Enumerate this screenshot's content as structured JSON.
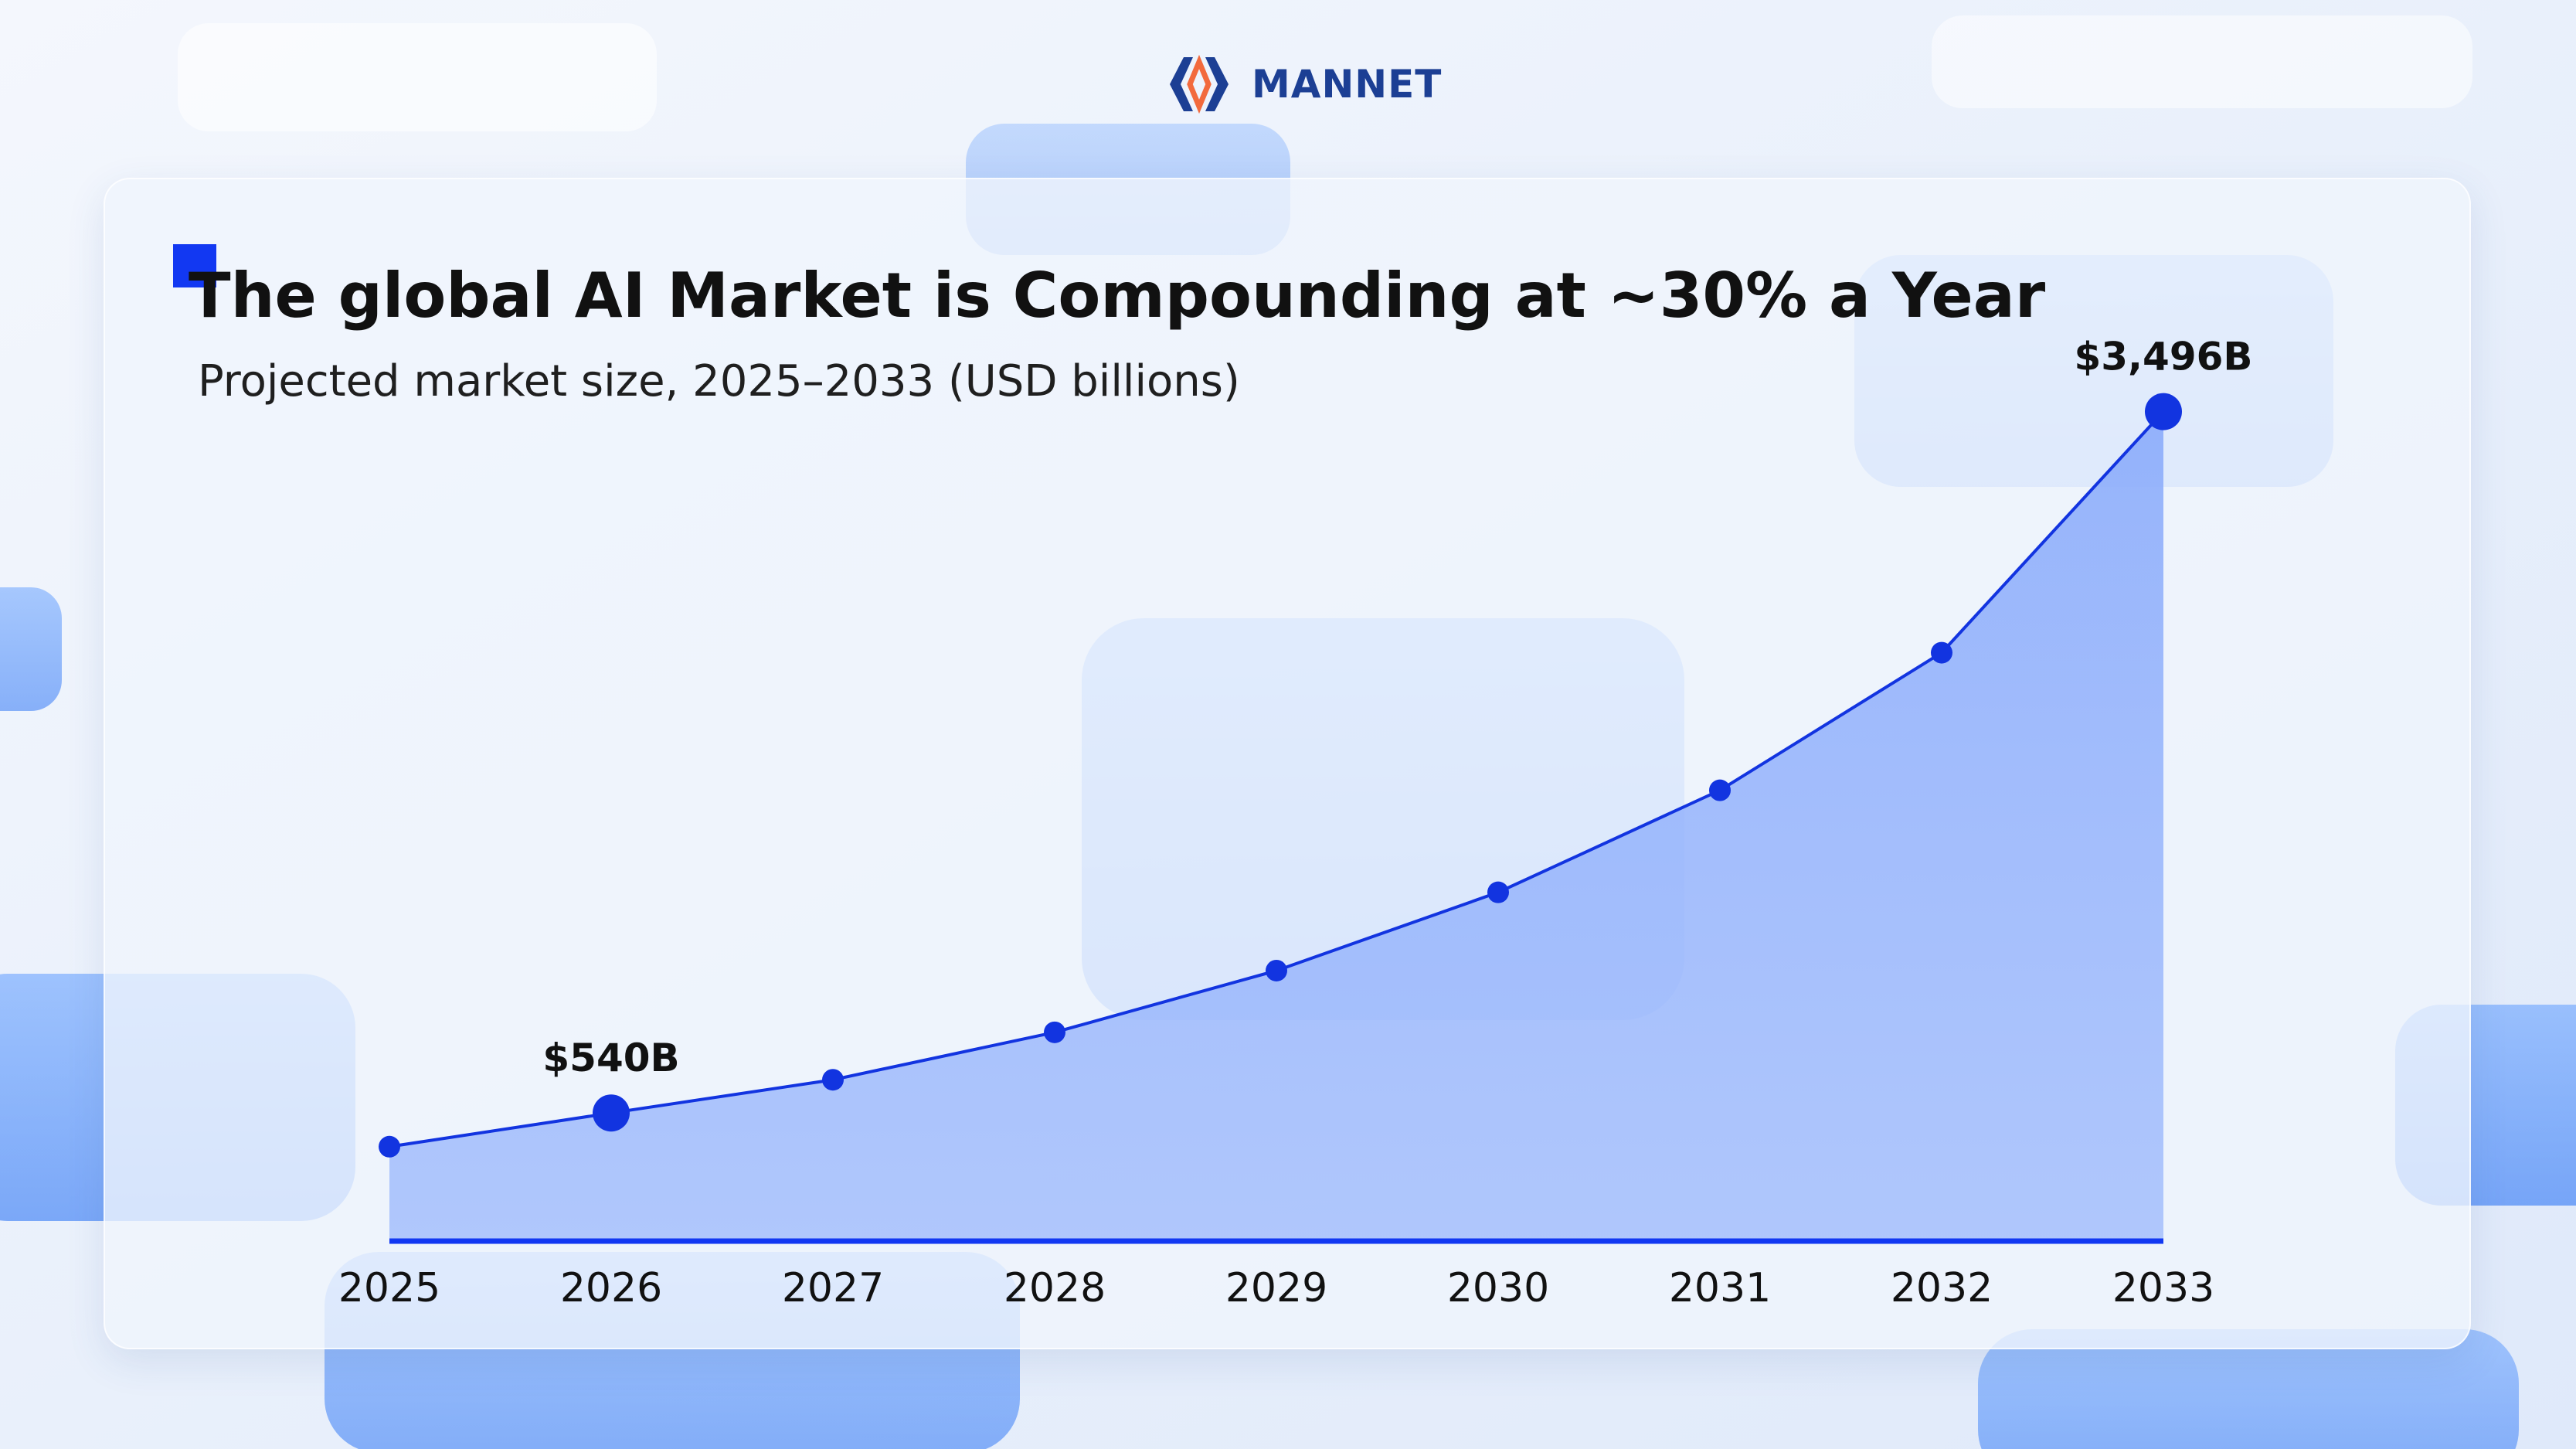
{
  "brand": {
    "name": "MANNET",
    "logo_icon": "mannet-logo-icon"
  },
  "colors": {
    "accent": "#1238f2",
    "line": "#1234e0",
    "area": "#8fb0fb",
    "title": "#111111"
  },
  "chart_data": {
    "type": "area",
    "title": "The global AI Market is Compounding at ~30% a Year",
    "subtitle": "Projected market size, 2025–2033 (USD billions)",
    "xlabel": "",
    "ylabel": "",
    "categories": [
      "2025",
      "2026",
      "2027",
      "2028",
      "2029",
      "2030",
      "2031",
      "2032",
      "2033"
    ],
    "series": [
      {
        "values": [
          398,
          540,
          680,
          880,
          1140,
          1470,
          1900,
          2480,
          3496
        ]
      }
    ],
    "ylim": [
      0,
      3700
    ],
    "data_labels": [
      {
        "index": 1,
        "text": "$540B"
      },
      {
        "index": 8,
        "text": "$3,496B"
      }
    ],
    "highlighted_points": [
      1,
      8
    ],
    "grid": false,
    "legend": "none"
  }
}
